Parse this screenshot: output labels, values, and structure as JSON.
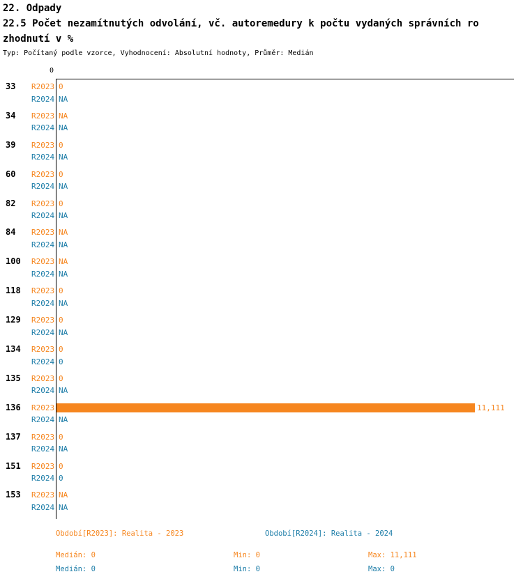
{
  "header": {
    "title_line1": "22. Odpady",
    "title_line2": "22.5 Počet nezamítnutých odvolání, vč. autoremedury k počtu vydaných správních ro",
    "title_line3": "zhodnutí v %",
    "subtitle": "Typ: Počítaný podle vzorce, Vyhodnocení: Absolutní hodnoty, Průměr: Medián"
  },
  "chart_data": {
    "type": "bar",
    "orientation": "horizontal",
    "title": "22.5 Počet nezamítnutých odvolání, vč. autoremedury k počtu vydaných správních rozhodnutí v %",
    "axis_origin_label": "0",
    "unit": "%",
    "xlim": [
      0,
      12.2
    ],
    "grid": false,
    "categories": [
      "33",
      "34",
      "39",
      "60",
      "82",
      "84",
      "100",
      "118",
      "129",
      "134",
      "135",
      "136",
      "137",
      "151",
      "153"
    ],
    "series": [
      {
        "name": "R2023",
        "color": "#f6861f",
        "period_label": "Období[R2023]: Realita - 2023",
        "values": [
          0,
          null,
          0,
          0,
          0,
          null,
          null,
          0,
          0,
          0,
          0,
          11.111,
          0,
          0,
          null
        ],
        "value_labels": [
          "0",
          "NA",
          "0",
          "0",
          "0",
          "NA",
          "NA",
          "0",
          "0",
          "0",
          "0",
          "11,111",
          "0",
          "0",
          "NA"
        ],
        "stats": {
          "median": 0,
          "min": 0,
          "max": 11.111
        }
      },
      {
        "name": "R2024",
        "color": "#1d7da8",
        "period_label": "Období[R2024]: Realita - 2024",
        "values": [
          null,
          null,
          null,
          null,
          null,
          null,
          null,
          null,
          null,
          0,
          null,
          null,
          null,
          0,
          null
        ],
        "value_labels": [
          "NA",
          "NA",
          "NA",
          "NA",
          "NA",
          "NA",
          "NA",
          "NA",
          "NA",
          "0",
          "NA",
          "NA",
          "NA",
          "0",
          "NA"
        ],
        "stats": {
          "median": 0,
          "min": 0,
          "max": 0
        }
      }
    ]
  },
  "footer": {
    "legend": [
      {
        "label": "Období[R2023]: Realita - 2023",
        "color": "#f6861f"
      },
      {
        "label": "Období[R2024]: Realita - 2024",
        "color": "#1d7da8"
      }
    ],
    "stats_rows": [
      {
        "color": "#f6861f",
        "median": "Medián: 0",
        "min": "Min: 0",
        "max": "Max: 11,111"
      },
      {
        "color": "#1d7da8",
        "median": "Medián: 0",
        "min": "Min: 0",
        "max": "Max: 0"
      }
    ]
  },
  "colors": {
    "r2023": "#f6861f",
    "r2024": "#1d7da8",
    "text": "#000000",
    "background": "#ffffff"
  }
}
